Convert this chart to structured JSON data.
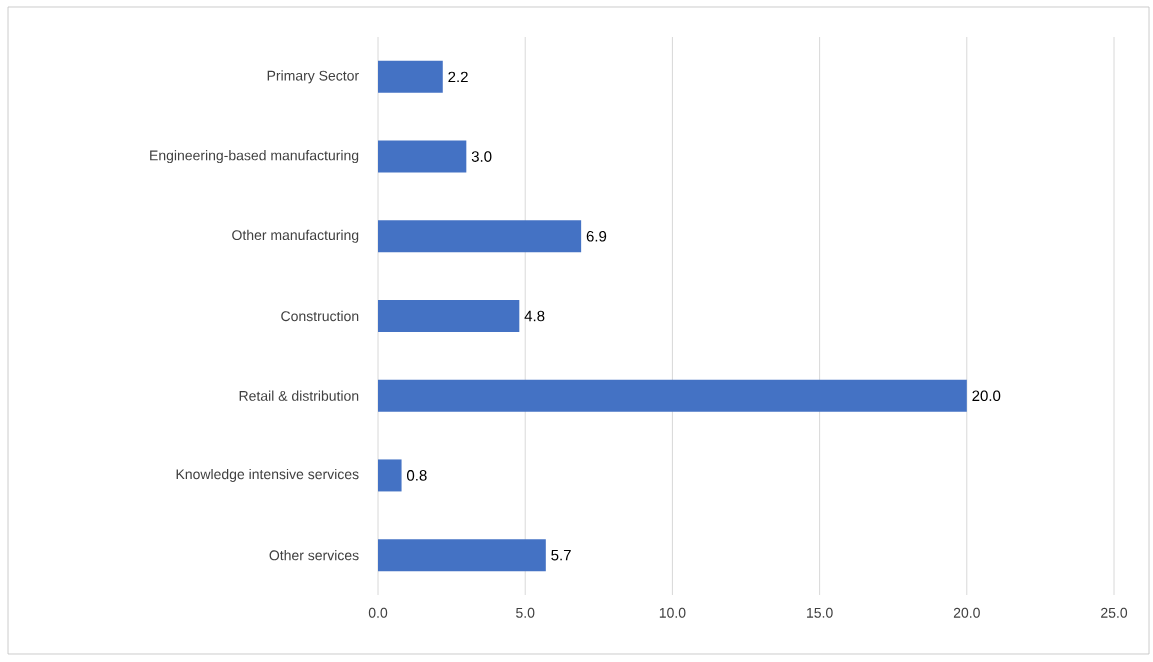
{
  "chart_data": {
    "type": "bar",
    "orientation": "horizontal",
    "categories": [
      "Primary Sector",
      "Engineering-based manufacturing",
      "Other manufacturing",
      "Construction",
      "Retail & distribution",
      "Knowledge intensive services",
      "Other services"
    ],
    "values": [
      2.2,
      3.0,
      6.9,
      4.8,
      20.0,
      0.8,
      5.7
    ],
    "value_labels": [
      "2.2",
      "3.0",
      "6.9",
      "4.8",
      "20.0",
      "0.8",
      "5.7"
    ],
    "color": "#4472c4",
    "xlim": [
      0,
      25
    ],
    "xticks": [
      {
        "value": 0,
        "label": "0.0"
      },
      {
        "value": 5,
        "label": "5.0"
      },
      {
        "value": 10,
        "label": "10.0"
      },
      {
        "value": 15,
        "label": "15.0"
      },
      {
        "value": 20,
        "label": "20.0"
      },
      {
        "value": 25,
        "label": "25.0"
      }
    ],
    "grid": "x"
  }
}
